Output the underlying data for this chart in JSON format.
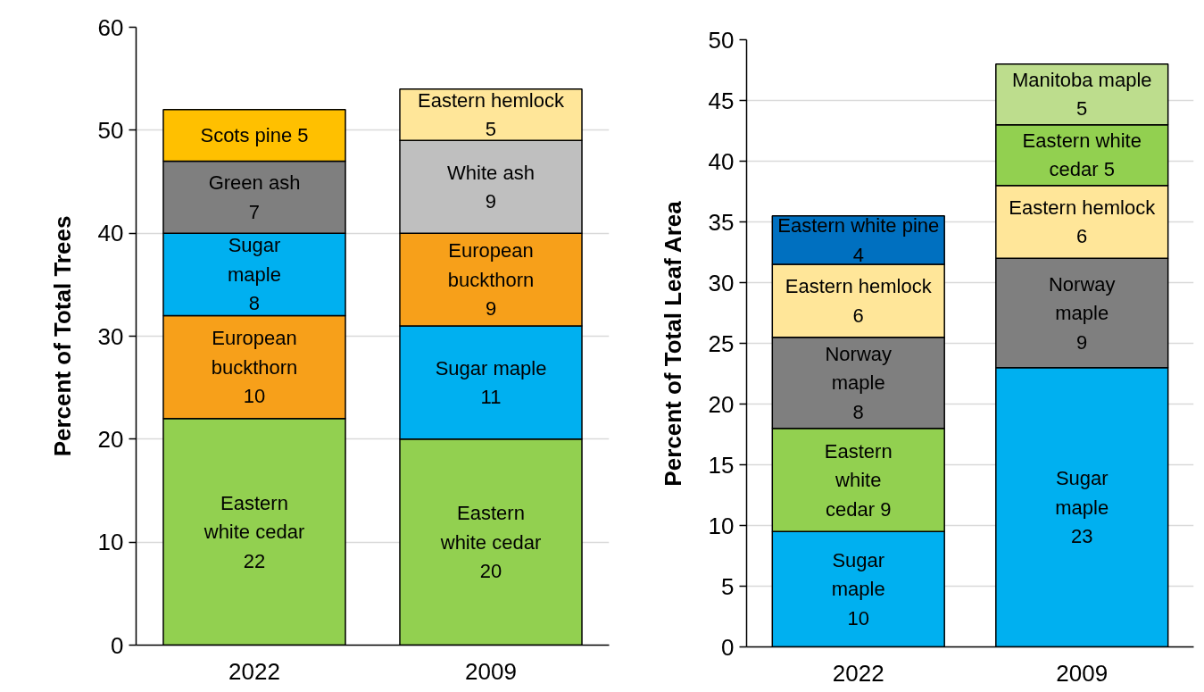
{
  "chart_data": [
    {
      "type": "bar",
      "stacked": true,
      "ylabel": "Percent of Total Trees",
      "categories": [
        "2022",
        "2009"
      ],
      "ylim": [
        0,
        60
      ],
      "yticks": [
        0,
        10,
        20,
        30,
        40,
        50,
        60
      ],
      "grid": "y",
      "series": [
        {
          "colors": [
            "#92d050",
            "#92d050"
          ],
          "values": [
            22,
            20
          ],
          "value_labels": [
            "Eastern\nwhite cedar\n22",
            "Eastern\nwhite cedar\n20"
          ]
        },
        {
          "colors": [
            "#f7a01a",
            "#00b0f0"
          ],
          "values": [
            10,
            11
          ],
          "value_labels": [
            "European\nbuckthorn\n10",
            "Sugar maple\n11"
          ]
        },
        {
          "colors": [
            "#00b0f0",
            "#f7a01a"
          ],
          "values": [
            8,
            9
          ],
          "value_labels": [
            "Sugar\nmaple\n8",
            "European\nbuckthorn\n9"
          ]
        },
        {
          "colors": [
            "#7f7f7f",
            "#bfbfbf"
          ],
          "values": [
            7,
            9
          ],
          "value_labels": [
            "Green ash\n7",
            "White ash\n9"
          ]
        },
        {
          "colors": [
            "#ffc000",
            "#ffe699"
          ],
          "values": [
            5,
            5
          ],
          "value_labels": [
            "Scots pine 5",
            "Eastern hemlock\n5"
          ]
        }
      ]
    },
    {
      "type": "bar",
      "stacked": true,
      "ylabel": "Percent of Total Leaf Area",
      "categories": [
        "2022",
        "2009"
      ],
      "ylim": [
        0,
        50
      ],
      "yticks": [
        0,
        5,
        10,
        15,
        20,
        25,
        30,
        35,
        40,
        45,
        50
      ],
      "grid": "y",
      "series": [
        {
          "colors": [
            "#00b0f0",
            "#00b0f0"
          ],
          "values": [
            9.5,
            23
          ],
          "value_labels": [
            "Sugar\nmaple\n10",
            "Sugar\nmaple\n23"
          ]
        },
        {
          "colors": [
            "#92d050",
            "#7f7f7f"
          ],
          "values": [
            8.5,
            9
          ],
          "value_labels": [
            "Eastern\nwhite\ncedar 9",
            "Norway\nmaple\n9"
          ]
        },
        {
          "colors": [
            "#7f7f7f",
            "#ffe699"
          ],
          "values": [
            7.5,
            6
          ],
          "value_labels": [
            "Norway\nmaple\n8",
            "Eastern hemlock\n6"
          ]
        },
        {
          "colors": [
            "#ffe699",
            "#92d050"
          ],
          "values": [
            6,
            5
          ],
          "value_labels": [
            "Eastern hemlock\n6",
            "Eastern white\ncedar 5"
          ]
        },
        {
          "colors": [
            "#0070c0",
            "#bddd8d"
          ],
          "values": [
            4,
            5
          ],
          "value_labels": [
            "Eastern white pine\n4",
            "Manitoba maple\n5"
          ]
        }
      ]
    }
  ]
}
